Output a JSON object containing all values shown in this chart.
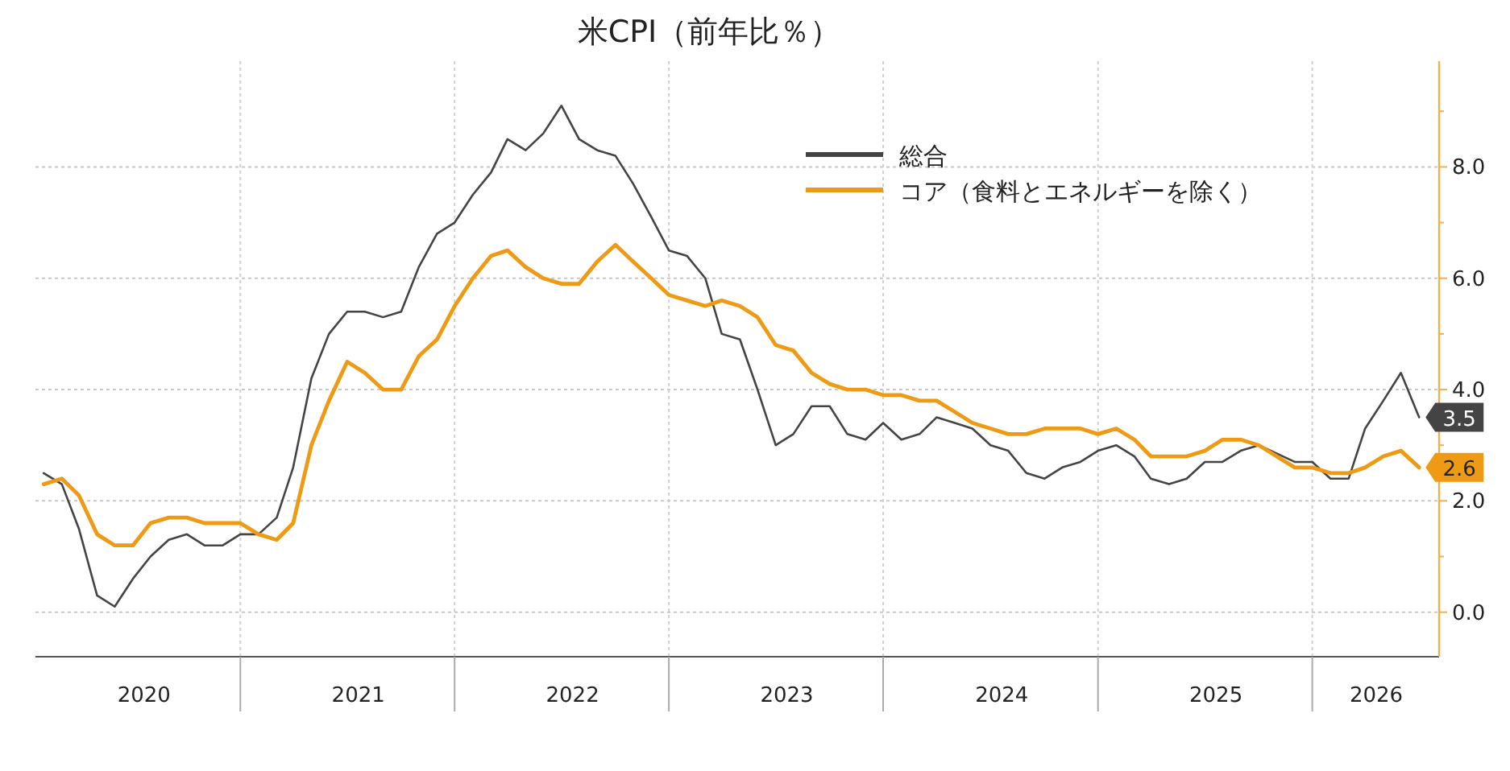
{
  "chart_data": {
    "type": "line",
    "title": "米CPI（前年比％）",
    "x": [
      "2020-01",
      "2020-02",
      "2020-03",
      "2020-04",
      "2020-05",
      "2020-06",
      "2020-07",
      "2020-08",
      "2020-09",
      "2020-10",
      "2020-11",
      "2020-12",
      "2021-01",
      "2021-02",
      "2021-03",
      "2021-04",
      "2021-05",
      "2021-06",
      "2021-07",
      "2021-08",
      "2021-09",
      "2021-10",
      "2021-11",
      "2021-12",
      "2022-01",
      "2022-02",
      "2022-03",
      "2022-04",
      "2022-05",
      "2022-06",
      "2022-07",
      "2022-08",
      "2022-09",
      "2022-10",
      "2022-11",
      "2022-12",
      "2023-01",
      "2023-02",
      "2023-03",
      "2023-04",
      "2023-05",
      "2023-06",
      "2023-07",
      "2023-08",
      "2023-09",
      "2023-10",
      "2023-11",
      "2023-12",
      "2024-01",
      "2024-02",
      "2024-03",
      "2024-04",
      "2024-05",
      "2024-06",
      "2024-07",
      "2024-08",
      "2024-09",
      "2024-10",
      "2024-11",
      "2024-12",
      "2025-01",
      "2025-02",
      "2025-03",
      "2025-04",
      "2025-05",
      "2025-06",
      "2025-07",
      "2025-08",
      "2025-09",
      "2025-11",
      "2025-12",
      "2026-01",
      "2026-02",
      "2026-03",
      "2026-04",
      "2026-05",
      "2026-06"
    ],
    "series": [
      {
        "name": "総合",
        "color": "#444444",
        "values": [
          2.5,
          2.3,
          1.5,
          0.3,
          0.1,
          0.6,
          1.0,
          1.3,
          1.4,
          1.2,
          1.2,
          1.4,
          1.4,
          1.7,
          2.6,
          4.2,
          5.0,
          5.4,
          5.4,
          5.3,
          5.4,
          6.2,
          6.8,
          7.0,
          7.5,
          7.9,
          8.5,
          8.3,
          8.6,
          9.1,
          8.5,
          8.3,
          8.2,
          7.7,
          7.1,
          6.5,
          6.4,
          6.0,
          5.0,
          4.9,
          4.0,
          3.0,
          3.2,
          3.7,
          3.7,
          3.2,
          3.1,
          3.4,
          3.1,
          3.2,
          3.5,
          3.4,
          3.3,
          3.0,
          2.9,
          2.5,
          2.4,
          2.6,
          2.7,
          2.9,
          3.0,
          2.8,
          2.4,
          2.3,
          2.4,
          2.7,
          2.7,
          2.9,
          3.0,
          2.7,
          2.7,
          2.4,
          2.4,
          3.3,
          3.8,
          4.3,
          3.5
        ],
        "value_labels": [
          null,
          null,
          null,
          null,
          null,
          null,
          null,
          null,
          null,
          null,
          null,
          null,
          null,
          null,
          null,
          null,
          null,
          null,
          null,
          null,
          null,
          null,
          null,
          null,
          null,
          null,
          null,
          null,
          null,
          null,
          null,
          null,
          null,
          null,
          null,
          null,
          null,
          null,
          null,
          null,
          null,
          null,
          null,
          null,
          null,
          null,
          null,
          null,
          null,
          null,
          null,
          null,
          null,
          null,
          null,
          null,
          null,
          null,
          null,
          null,
          null,
          null,
          null,
          null,
          null,
          null,
          null,
          null,
          null,
          null,
          null,
          null,
          null,
          null,
          null,
          null,
          "3.5"
        ]
      },
      {
        "name": "コア（食料とエネルギーを除く）",
        "color": "#ee9a14",
        "values": [
          2.3,
          2.4,
          2.1,
          1.4,
          1.2,
          1.2,
          1.6,
          1.7,
          1.7,
          1.6,
          1.6,
          1.6,
          1.4,
          1.3,
          1.6,
          3.0,
          3.8,
          4.5,
          4.3,
          4.0,
          4.0,
          4.6,
          4.9,
          5.5,
          6.0,
          6.4,
          6.5,
          6.2,
          6.0,
          5.9,
          5.9,
          6.3,
          6.6,
          6.3,
          6.0,
          5.7,
          5.6,
          5.5,
          5.6,
          5.5,
          5.3,
          4.8,
          4.7,
          4.3,
          4.1,
          4.0,
          4.0,
          3.9,
          3.9,
          3.8,
          3.8,
          3.6,
          3.4,
          3.3,
          3.2,
          3.2,
          3.3,
          3.3,
          3.3,
          3.2,
          3.3,
          3.1,
          2.8,
          2.8,
          2.8,
          2.9,
          3.1,
          3.1,
          3.0,
          2.6,
          2.6,
          2.5,
          2.5,
          2.6,
          2.8,
          2.9,
          2.6
        ],
        "value_labels": [
          null,
          null,
          null,
          null,
          null,
          null,
          null,
          null,
          null,
          null,
          null,
          null,
          null,
          null,
          null,
          null,
          null,
          null,
          null,
          null,
          null,
          null,
          null,
          null,
          null,
          null,
          null,
          null,
          null,
          null,
          null,
          null,
          null,
          null,
          null,
          null,
          null,
          null,
          null,
          null,
          null,
          null,
          null,
          null,
          null,
          null,
          null,
          null,
          null,
          null,
          null,
          null,
          null,
          null,
          null,
          null,
          null,
          null,
          null,
          null,
          null,
          null,
          null,
          null,
          null,
          null,
          null,
          null,
          null,
          null,
          null,
          null,
          null,
          null,
          null,
          null,
          "2.6"
        ]
      }
    ],
    "xlim": [
      "2019-12-18",
      "2026-07-05"
    ],
    "xticks": [
      {
        "value": "2020-06-20",
        "label": "2020"
      },
      {
        "value": "2020-12",
        "label": null
      },
      {
        "value": "2021-06-20",
        "label": "2021"
      },
      {
        "value": "2021-12",
        "label": null
      },
      {
        "value": "2022-06-20",
        "label": "2022"
      },
      {
        "value": "2022-12",
        "label": null
      },
      {
        "value": "2023-06-20",
        "label": "2023"
      },
      {
        "value": "2023-12",
        "label": null
      },
      {
        "value": "2024-06-20",
        "label": "2024"
      },
      {
        "value": "2024-12",
        "label": null
      },
      {
        "value": "2025-06-20",
        "label": "2025"
      },
      {
        "value": "2025-12",
        "label": null
      },
      {
        "value": "2026-03-20",
        "label": "2026"
      }
    ],
    "ylim": [
      -0.8,
      9.9
    ],
    "yticks": [
      {
        "value": 0,
        "label": "0.0"
      },
      {
        "value": 1,
        "label": null
      },
      {
        "value": 2,
        "label": "2.0"
      },
      {
        "value": 3,
        "label": null
      },
      {
        "value": 4,
        "label": "4.0"
      },
      {
        "value": 5,
        "label": null
      },
      {
        "value": 6,
        "label": "6.0"
      },
      {
        "value": 7,
        "label": null
      },
      {
        "value": 8,
        "label": "8.0"
      },
      {
        "value": 9,
        "label": null
      }
    ],
    "grid": true,
    "legend": "top right",
    "marker": "none",
    "line_style": "solid"
  }
}
